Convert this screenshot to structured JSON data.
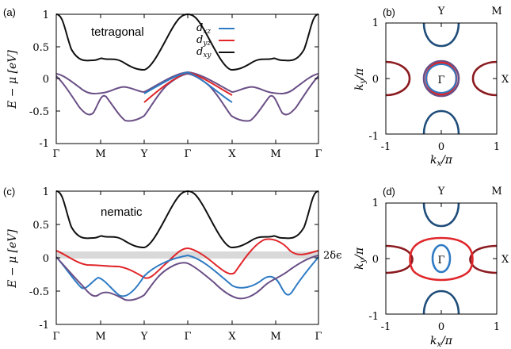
{
  "colors": {
    "dxz": "#2e7bc4",
    "dyz": "#e0262a",
    "dxy": "#111111",
    "band_gap_fill": "#d9d9d9",
    "fermi_surface_mixed": "#6a4f86"
  },
  "band_plots": {
    "ylabel": "E − μ [eV]",
    "yticks": [
      "1",
      "0.5",
      "0",
      "-0.5",
      "-1"
    ],
    "ylim": [
      -1,
      1
    ],
    "xticks": [
      "Γ",
      "M",
      "Y",
      "Γ",
      "X",
      "M",
      "Γ"
    ]
  },
  "fs_plots": {
    "xlabel": "k_x/π",
    "ylabel": "k_y/π",
    "ticks": [
      "-1",
      "0",
      "1"
    ],
    "label_Y": "Y",
    "label_M": "M",
    "label_X": "X",
    "label_Gamma": "Γ"
  },
  "legend": {
    "dxz": "d_xz",
    "dyz": "d_yz",
    "dxy": "d_xy"
  },
  "panels": {
    "a": {
      "label": "(a)",
      "title": "tetragonal"
    },
    "b": {
      "label": "(b)"
    },
    "c": {
      "label": "(c)",
      "title": "nematic",
      "annotation": "2δϵ",
      "gap_band": [
        0,
        0.1
      ]
    },
    "d": {
      "label": "(d)"
    }
  },
  "chart_data": [
    {
      "type": "line",
      "title": "tetragonal",
      "ylabel": "E − μ [eV]",
      "ylim": [
        -1,
        1
      ],
      "x_ticks": [
        "Γ",
        "M",
        "Y",
        "Γ",
        "X",
        "M",
        "Γ"
      ],
      "series": [
        {
          "name": "d_xy",
          "points": [
            [
              0,
              1
            ],
            [
              0.2,
              0.98
            ],
            [
              0.5,
              0.55
            ],
            [
              0.8,
              0.28
            ],
            [
              1,
              0.26
            ],
            [
              1.25,
              0.27
            ],
            [
              1.5,
              0.27
            ],
            [
              1.75,
              0.22
            ],
            [
              2,
              0.17
            ],
            [
              2.4,
              0.45
            ],
            [
              2.8,
              0.95
            ],
            [
              3,
              1
            ],
            [
              3.2,
              0.95
            ],
            [
              3.6,
              0.45
            ],
            [
              4,
              0.17
            ],
            [
              4.25,
              0.22
            ],
            [
              4.5,
              0.27
            ],
            [
              4.75,
              0.27
            ],
            [
              5,
              0.26
            ],
            [
              5.2,
              0.28
            ],
            [
              5.5,
              0.55
            ],
            [
              5.8,
              0.98
            ],
            [
              6,
              1
            ]
          ]
        },
        {
          "name": "d_xz / d_yz (degenerate, upper)",
          "points": [
            [
              0,
              0.08
            ],
            [
              0.3,
              0.02
            ],
            [
              0.6,
              -0.15
            ],
            [
              1,
              -0.22
            ],
            [
              1.3,
              -0.22
            ],
            [
              1.6,
              -0.15
            ],
            [
              2,
              -0.2
            ],
            [
              2.5,
              -0.05
            ],
            [
              3,
              0.1
            ],
            [
              3.5,
              -0.05
            ],
            [
              4,
              -0.2
            ],
            [
              4.4,
              -0.15
            ],
            [
              4.7,
              -0.22
            ],
            [
              5,
              -0.22
            ],
            [
              5.4,
              -0.15
            ],
            [
              5.7,
              0.02
            ],
            [
              6,
              0.08
            ]
          ]
        },
        {
          "name": "d_xz / d_yz (degenerate, lower)",
          "points": [
            [
              0,
              0.05
            ],
            [
              0.3,
              -0.15
            ],
            [
              0.6,
              -0.45
            ],
            [
              0.8,
              -0.55
            ],
            [
              1,
              -0.25
            ],
            [
              1.3,
              -0.45
            ],
            [
              1.6,
              -0.68
            ],
            [
              1.8,
              -0.65
            ],
            [
              2,
              -0.6
            ],
            [
              2.3,
              -0.2
            ],
            [
              2.6,
              0.02
            ],
            [
              3,
              0.08
            ],
            [
              3.4,
              0.02
            ],
            [
              3.7,
              -0.2
            ],
            [
              4,
              -0.6
            ],
            [
              4.2,
              -0.65
            ],
            [
              4.4,
              -0.68
            ],
            [
              4.7,
              -0.45
            ],
            [
              5,
              -0.25
            ],
            [
              5.2,
              -0.55
            ],
            [
              5.4,
              -0.45
            ],
            [
              5.7,
              -0.15
            ],
            [
              6,
              0.05
            ]
          ]
        },
        {
          "name": "d_yz",
          "points": [
            [
              2,
              -0.38
            ],
            [
              2.5,
              -0.12
            ],
            [
              3,
              0.1
            ],
            [
              3.5,
              -0.05
            ],
            [
              4,
              -0.25
            ]
          ]
        },
        {
          "name": "d_xz",
          "points": [
            [
              2,
              -0.25
            ],
            [
              2.5,
              -0.05
            ],
            [
              3,
              0.1
            ],
            [
              3.5,
              -0.12
            ],
            [
              4,
              -0.38
            ]
          ]
        }
      ]
    },
    {
      "type": "scatter",
      "xlabel": "k_x/π",
      "ylabel": "k_y/π",
      "xlim": [
        -1,
        1
      ],
      "ylim": [
        -1,
        1
      ],
      "series": [
        {
          "name": "d_xz",
          "points": [
            [
              0,
              0.3
            ],
            [
              0.28,
              0
            ],
            [
              0,
              -0.3
            ],
            [
              -0.28,
              0
            ]
          ]
        },
        {
          "name": "d_yz",
          "points": [
            [
              0,
              0.33
            ],
            [
              0.3,
              0
            ],
            [
              0,
              -0.33
            ],
            [
              -0.3,
              0
            ]
          ]
        },
        {
          "name": "d_xy",
          "points": [
            [
              0,
              1
            ],
            [
              0,
              -1
            ],
            [
              1,
              0
            ],
            [
              -1,
              0
            ]
          ]
        }
      ]
    },
    {
      "type": "line",
      "title": "nematic",
      "ylabel": "E − μ [eV]",
      "ylim": [
        -1,
        1
      ],
      "x_ticks": [
        "Γ",
        "M",
        "Y",
        "Γ",
        "X",
        "M",
        "Γ"
      ],
      "series": [
        {
          "name": "d_xy",
          "points": [
            [
              0,
              1
            ],
            [
              0.2,
              0.98
            ],
            [
              0.5,
              0.55
            ],
            [
              0.8,
              0.28
            ],
            [
              1,
              0.26
            ],
            [
              1.25,
              0.27
            ],
            [
              1.5,
              0.27
            ],
            [
              1.75,
              0.22
            ],
            [
              2,
              0.17
            ],
            [
              2.4,
              0.45
            ],
            [
              2.8,
              0.95
            ],
            [
              3,
              1
            ],
            [
              3.2,
              0.95
            ],
            [
              3.6,
              0.45
            ],
            [
              4,
              0.17
            ],
            [
              4.25,
              0.22
            ],
            [
              4.5,
              0.27
            ],
            [
              4.75,
              0.27
            ],
            [
              5,
              0.26
            ],
            [
              5.2,
              0.28
            ],
            [
              5.5,
              0.55
            ],
            [
              5.8,
              0.98
            ],
            [
              6,
              1
            ]
          ]
        },
        {
          "name": "d_yz",
          "points": [
            [
              0,
              0.15
            ],
            [
              0.5,
              0.0
            ],
            [
              1,
              -0.1
            ],
            [
              1.5,
              -0.12
            ],
            [
              2,
              -0.3
            ],
            [
              2.5,
              0.05
            ],
            [
              3,
              0.15
            ],
            [
              3.5,
              0.0
            ],
            [
              4,
              -0.2
            ],
            [
              4.4,
              0.1
            ],
            [
              4.8,
              0.2
            ],
            [
              5.2,
              0.2
            ],
            [
              5.6,
              0.05
            ],
            [
              6,
              0.15
            ]
          ]
        },
        {
          "name": "d_xz",
          "points": [
            [
              0,
              0.05
            ],
            [
              0.6,
              -0.45
            ],
            [
              1,
              -0.28
            ],
            [
              1.5,
              -0.65
            ],
            [
              2,
              -0.25
            ],
            [
              2.5,
              -0.05
            ],
            [
              3,
              0.05
            ],
            [
              3.5,
              -0.15
            ],
            [
              4,
              -0.45
            ],
            [
              4.5,
              -0.38
            ],
            [
              5,
              -0.2
            ],
            [
              5.3,
              -0.5
            ],
            [
              5.6,
              -0.2
            ],
            [
              6,
              0.05
            ]
          ]
        }
      ]
    },
    {
      "type": "scatter",
      "xlabel": "k_x/π",
      "ylabel": "k_y/π",
      "xlim": [
        -1,
        1
      ],
      "ylim": [
        -1,
        1
      ],
      "series": [
        {
          "name": "d_xz",
          "points": [
            [
              0,
              0.25
            ],
            [
              0.15,
              0
            ],
            [
              0,
              -0.25
            ],
            [
              -0.15,
              0
            ]
          ]
        },
        {
          "name": "d_yz",
          "points": [
            [
              0,
              0.33
            ],
            [
              0.48,
              0
            ],
            [
              0,
              -0.33
            ],
            [
              -0.48,
              0
            ]
          ]
        },
        {
          "name": "d_xy",
          "points": [
            [
              0,
              1
            ],
            [
              0,
              -1
            ],
            [
              1,
              0
            ],
            [
              -1,
              0
            ]
          ]
        }
      ]
    }
  ]
}
